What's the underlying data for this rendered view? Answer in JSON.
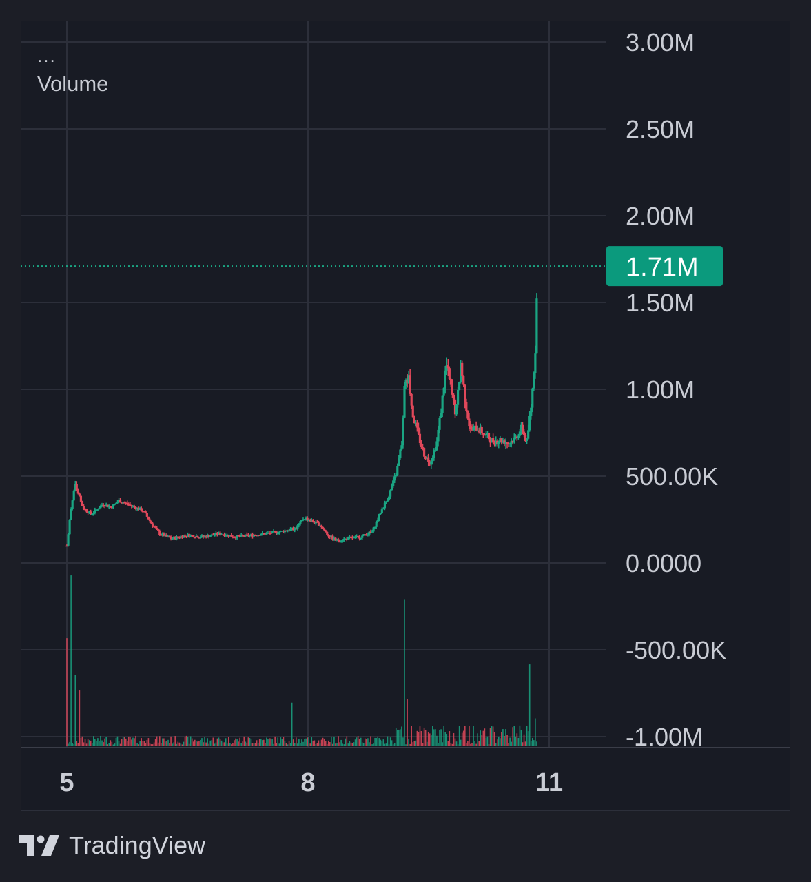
{
  "legend": {
    "menu": "...",
    "indicator": "Volume"
  },
  "brand": {
    "name": "TradingView",
    "icon": "tradingview-logo-icon"
  },
  "colors": {
    "background": "#1c1e26",
    "pane": "#181b24",
    "grid": "#2c2f3a",
    "text": "#c9ccd4",
    "up": "#1aa583",
    "down": "#e0485a",
    "price_tag": "#0b9a7d"
  },
  "chart_data": {
    "type": "candlestick",
    "indicator": "Volume",
    "x_ticks": [
      "5",
      "8",
      "11"
    ],
    "y_ticks": [
      "3.00M",
      "2.50M",
      "2.00M",
      "1.50M",
      "1.00M",
      "500.00K",
      "0.0000",
      "-500.00K",
      "-1.00M"
    ],
    "y_tick_values": [
      3000000,
      2500000,
      2000000,
      1500000,
      1000000,
      500000,
      0,
      -500000,
      -1000000
    ],
    "ylim": [
      -1050000,
      3000000
    ],
    "last_value": 1710000,
    "last_value_label": "1.71M",
    "grid": true,
    "volume_histogram": true,
    "price_path": [
      [
        5.0,
        100000
      ],
      [
        5.05,
        300000
      ],
      [
        5.1,
        450000
      ],
      [
        5.2,
        320000
      ],
      [
        5.3,
        280000
      ],
      [
        5.45,
        340000
      ],
      [
        5.55,
        320000
      ],
      [
        5.65,
        360000
      ],
      [
        5.8,
        330000
      ],
      [
        5.95,
        300000
      ],
      [
        6.05,
        230000
      ],
      [
        6.15,
        170000
      ],
      [
        6.3,
        140000
      ],
      [
        6.5,
        160000
      ],
      [
        6.7,
        150000
      ],
      [
        6.9,
        170000
      ],
      [
        7.1,
        150000
      ],
      [
        7.3,
        160000
      ],
      [
        7.5,
        170000
      ],
      [
        7.65,
        180000
      ],
      [
        7.85,
        200000
      ],
      [
        7.95,
        260000
      ],
      [
        8.05,
        240000
      ],
      [
        8.15,
        220000
      ],
      [
        8.25,
        160000
      ],
      [
        8.35,
        130000
      ],
      [
        8.5,
        140000
      ],
      [
        8.65,
        150000
      ],
      [
        8.8,
        180000
      ],
      [
        8.9,
        290000
      ],
      [
        9.0,
        380000
      ],
      [
        9.1,
        520000
      ],
      [
        9.17,
        700000
      ],
      [
        9.2,
        1000000
      ],
      [
        9.25,
        1080000
      ],
      [
        9.3,
        860000
      ],
      [
        9.38,
        720000
      ],
      [
        9.45,
        620000
      ],
      [
        9.52,
        580000
      ],
      [
        9.6,
        690000
      ],
      [
        9.66,
        900000
      ],
      [
        9.72,
        1150000
      ],
      [
        9.78,
        1000000
      ],
      [
        9.84,
        850000
      ],
      [
        9.9,
        1150000
      ],
      [
        9.96,
        920000
      ],
      [
        10.02,
        760000
      ],
      [
        10.1,
        780000
      ],
      [
        10.2,
        740000
      ],
      [
        10.3,
        700000
      ],
      [
        10.4,
        710000
      ],
      [
        10.5,
        690000
      ],
      [
        10.58,
        720000
      ],
      [
        10.66,
        780000
      ],
      [
        10.72,
        690000
      ],
      [
        10.78,
        920000
      ],
      [
        10.83,
        1250000
      ],
      [
        10.86,
        1710000
      ]
    ],
    "volume_spikes": [
      [
        5.0,
        0.62
      ],
      [
        5.05,
        0.98
      ],
      [
        5.1,
        0.41
      ],
      [
        5.15,
        0.32
      ],
      [
        9.2,
        0.84
      ],
      [
        7.8,
        0.25
      ],
      [
        9.23,
        0.27
      ],
      [
        10.75,
        0.47
      ],
      [
        10.82,
        0.16
      ],
      [
        10.86,
        0.24
      ]
    ]
  }
}
